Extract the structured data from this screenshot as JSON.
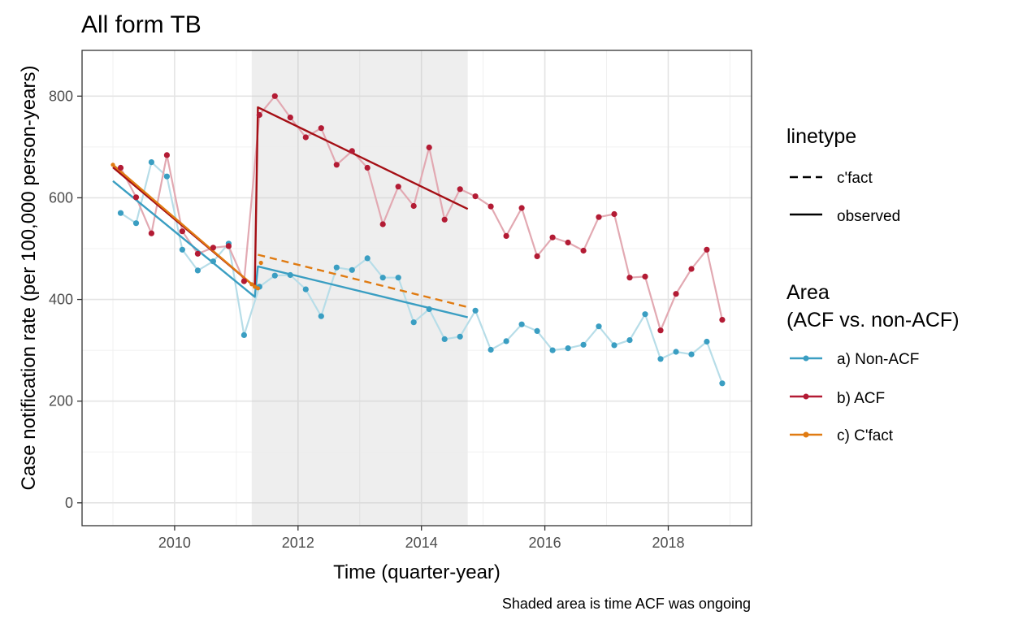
{
  "chart_data": {
    "type": "line",
    "title": "All form TB",
    "xlabel": "Time (quarter-year)",
    "ylabel": "Case notification rate (per 100,000 person-years)",
    "caption": "Shaded area is time ACF was ongoing",
    "xlim": [
      2008.5,
      2019.35
    ],
    "ylim": [
      -45,
      890
    ],
    "x_ticks": [
      2010,
      2012,
      2014,
      2016,
      2018
    ],
    "y_ticks": [
      0,
      200,
      400,
      600,
      800
    ],
    "grid": true,
    "shaded_region": {
      "x_start": 2011.25,
      "x_end": 2014.75
    },
    "colors": {
      "non_acf": "#3a9ec2",
      "non_acf_faded": "#b7dde8",
      "acf": "#b31b34",
      "acf_faded": "#e2a9b2",
      "acf_trend": "#a50f15",
      "cfact": "#e07b12",
      "shade": "#ebebeb"
    },
    "series": [
      {
        "name": "a) Non-ACF",
        "x": [
          2009.125,
          2009.375,
          2009.625,
          2009.875,
          2010.125,
          2010.375,
          2010.625,
          2010.875,
          2011.125,
          2011.375,
          2011.625,
          2011.875,
          2012.125,
          2012.375,
          2012.625,
          2012.875,
          2013.125,
          2013.375,
          2013.625,
          2013.875,
          2014.125,
          2014.375,
          2014.625,
          2014.875,
          2015.125,
          2015.375,
          2015.625,
          2015.875,
          2016.125,
          2016.375,
          2016.625,
          2016.875,
          2017.125,
          2017.375,
          2017.625,
          2017.875,
          2018.125,
          2018.375,
          2018.625,
          2018.875
        ],
        "values": [
          570,
          550,
          670,
          642,
          498,
          457,
          475,
          510,
          330,
          425,
          447,
          448,
          420,
          367,
          463,
          458,
          481,
          443,
          443,
          355,
          381,
          322,
          327,
          378,
          301,
          318,
          351,
          338,
          300,
          304,
          311,
          347,
          310,
          320,
          371,
          283,
          297,
          292,
          317,
          235
        ]
      },
      {
        "name": "b) ACF",
        "x": [
          2009.125,
          2009.375,
          2009.625,
          2009.875,
          2010.125,
          2010.375,
          2010.625,
          2010.875,
          2011.125,
          2011.375,
          2011.625,
          2011.875,
          2012.125,
          2012.375,
          2012.625,
          2012.875,
          2013.125,
          2013.375,
          2013.625,
          2013.875,
          2014.125,
          2014.375,
          2014.625,
          2014.875,
          2015.125,
          2015.375,
          2015.625,
          2015.875,
          2016.125,
          2016.375,
          2016.625,
          2016.875,
          2017.125,
          2017.375,
          2017.625,
          2017.875,
          2018.125,
          2018.375,
          2018.625,
          2018.875
        ],
        "values": [
          659,
          601,
          530,
          684,
          534,
          490,
          502,
          505,
          436,
          763,
          800,
          758,
          719,
          737,
          665,
          692,
          659,
          548,
          622,
          584,
          699,
          557,
          617,
          603,
          583,
          525,
          580,
          485,
          522,
          512,
          496,
          562,
          568,
          443,
          445,
          339,
          411,
          460,
          498,
          360
        ]
      },
      {
        "name": "c) C'fact",
        "x": [
          2009.0,
          2011.25,
          2011.3,
          2011.35,
          2011.4
        ],
        "values": [
          665,
          430,
          425,
          422,
          472
        ]
      }
    ],
    "trend_lines": [
      {
        "series": "a) Non-ACF",
        "linetype": "observed",
        "x": [
          2009.0,
          2011.3,
          2011.3,
          2011.35,
          2014.75
        ],
        "values": [
          633,
          405,
          405,
          465,
          365
        ]
      },
      {
        "series": "b) ACF",
        "linetype": "observed",
        "x": [
          2009.0,
          2011.3,
          2011.3,
          2011.35,
          2014.75
        ],
        "values": [
          660,
          425,
          425,
          778,
          578
        ]
      },
      {
        "series": "c) C'fact",
        "linetype": "observed",
        "x": [
          2009.0,
          2011.3
        ],
        "values": [
          665,
          425
        ]
      },
      {
        "series": "c) C'fact",
        "linetype": "c'fact",
        "x": [
          2011.35,
          2014.75
        ],
        "values": [
          488,
          385
        ]
      }
    ],
    "legends": {
      "linetype": {
        "title": "linetype",
        "items": [
          "c'fact",
          "observed"
        ]
      },
      "area": {
        "title_line1": "Area",
        "title_line2": "(ACF vs. non-ACF)",
        "items": [
          "a) Non-ACF",
          "b) ACF",
          "c) C'fact"
        ]
      }
    }
  }
}
